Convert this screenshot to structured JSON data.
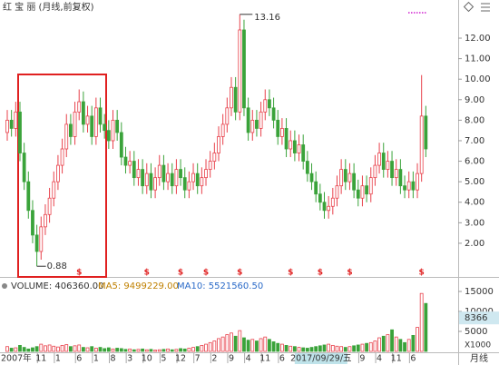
{
  "chart_data": {
    "type": "candlestick",
    "title": "红 宝 丽 (月线,前复权)",
    "period": "月线",
    "up_color": "#e8414b",
    "down_color": "#3aa33a",
    "categories": [
      "2007年",
      null,
      null,
      null,
      null,
      null,
      null,
      null,
      "11",
      null,
      null,
      null,
      "1",
      null,
      null,
      null,
      null,
      "6",
      null,
      null,
      null,
      "1",
      null,
      null,
      null,
      "8",
      null,
      null,
      null,
      "3",
      null,
      null,
      null,
      "10",
      null,
      null,
      null,
      "5",
      null,
      null,
      null,
      "12",
      null,
      null,
      null,
      "7",
      null,
      null,
      null,
      "2",
      null,
      null,
      null,
      "9",
      null,
      null,
      null,
      "4",
      null,
      null,
      null,
      "11",
      null,
      null,
      null,
      "6",
      null,
      null,
      null,
      null,
      null,
      null,
      null,
      null,
      "2017/09/29/五",
      null,
      null,
      null,
      null,
      null,
      null,
      null,
      null,
      null,
      "9",
      null,
      null,
      null,
      "4",
      null,
      null,
      null,
      "11",
      null,
      null,
      null,
      "6",
      null,
      null,
      null
    ],
    "open": [
      7.4,
      8.0,
      7.6,
      8.4,
      6.4,
      5.0,
      3.6,
      2.4,
      1.6,
      2.8,
      3.4,
      4.2,
      5.0,
      5.8,
      6.6,
      7.8,
      7.2,
      8.4,
      8.9,
      7.8,
      8.2,
      7.2,
      8.6,
      7.8,
      7.5,
      7.0,
      8.0,
      7.4,
      6.2,
      5.8,
      6.0,
      5.2,
      5.6,
      4.8,
      5.4,
      4.6,
      5.2,
      5.8,
      5.0,
      5.4,
      4.8,
      5.6,
      5.2,
      4.6,
      5.0,
      5.4,
      4.8,
      5.2,
      5.6,
      6.0,
      6.4,
      7.2,
      7.8,
      8.6,
      9.6,
      8.4,
      12.4,
      8.6,
      7.4,
      8.0,
      7.6,
      8.4,
      9.0,
      8.6,
      8.0,
      7.2,
      7.6,
      6.6,
      7.0,
      6.4,
      6.8,
      6.0,
      5.4,
      5.0,
      4.4,
      4.0,
      3.6,
      3.8,
      4.2,
      4.8,
      5.6,
      5.0,
      5.4,
      4.6,
      4.2,
      4.8,
      4.4,
      5.2,
      5.8,
      6.4,
      5.6,
      6.0,
      5.2,
      5.6,
      4.8,
      4.6,
      5.0,
      4.6,
      5.4,
      8.2
    ],
    "high": [
      8.5,
      8.5,
      8.9,
      8.9,
      6.9,
      5.5,
      4.1,
      2.9,
      3.3,
      3.9,
      4.7,
      5.5,
      6.3,
      7.1,
      8.3,
      8.3,
      8.9,
      9.5,
      9.4,
      8.7,
      8.7,
      9.1,
      9.1,
      8.3,
      8.0,
      8.5,
      8.5,
      7.9,
      6.7,
      6.5,
      6.5,
      6.1,
      6.1,
      5.9,
      5.9,
      5.7,
      6.3,
      6.3,
      5.9,
      5.9,
      6.1,
      6.1,
      5.7,
      5.5,
      5.9,
      5.9,
      5.7,
      6.1,
      6.5,
      6.9,
      7.7,
      8.3,
      9.1,
      10.1,
      10.1,
      13.16,
      12.9,
      9.1,
      8.5,
      8.5,
      8.9,
      9.5,
      9.5,
      9.1,
      8.5,
      8.1,
      8.1,
      7.5,
      7.5,
      7.3,
      7.3,
      6.5,
      5.9,
      5.5,
      4.9,
      4.5,
      4.3,
      4.7,
      5.3,
      6.1,
      6.1,
      5.9,
      5.9,
      5.1,
      5.3,
      5.3,
      5.7,
      6.3,
      6.9,
      6.9,
      6.5,
      6.5,
      6.1,
      6.1,
      5.3,
      5.5,
      5.5,
      5.9,
      10.2,
      8.7
    ],
    "low": [
      7.0,
      7.2,
      7.2,
      6.0,
      4.6,
      3.2,
      2.0,
      0.88,
      1.2,
      2.4,
      3.0,
      3.8,
      4.6,
      5.4,
      6.2,
      6.8,
      6.8,
      8.0,
      7.4,
      7.4,
      6.8,
      6.8,
      7.4,
      7.1,
      6.6,
      6.6,
      7.0,
      5.8,
      5.4,
      5.4,
      4.8,
      4.8,
      4.4,
      4.4,
      4.2,
      4.2,
      4.8,
      4.6,
      4.6,
      4.4,
      4.4,
      4.8,
      4.2,
      4.2,
      4.6,
      4.4,
      4.4,
      4.8,
      5.2,
      5.6,
      6.0,
      6.8,
      7.4,
      8.2,
      8.0,
      8.0,
      8.2,
      7.0,
      7.0,
      7.2,
      7.2,
      8.0,
      8.2,
      7.6,
      6.8,
      6.8,
      6.2,
      6.2,
      6.0,
      6.0,
      5.6,
      5.0,
      4.6,
      4.0,
      3.6,
      3.2,
      3.2,
      3.4,
      3.8,
      4.4,
      4.6,
      4.6,
      4.2,
      3.8,
      3.8,
      4.0,
      4.0,
      4.8,
      5.4,
      5.2,
      5.2,
      4.8,
      4.8,
      4.4,
      4.2,
      4.2,
      4.2,
      4.2,
      5.0,
      6.2
    ],
    "close": [
      8.0,
      7.6,
      8.4,
      6.4,
      5.0,
      3.6,
      2.4,
      1.6,
      2.8,
      3.4,
      4.2,
      5.0,
      5.8,
      6.6,
      7.8,
      7.2,
      8.4,
      8.9,
      7.8,
      8.2,
      7.2,
      8.6,
      7.8,
      7.5,
      7.0,
      8.0,
      7.4,
      6.2,
      5.8,
      6.0,
      5.2,
      5.6,
      4.8,
      5.4,
      4.6,
      5.2,
      5.8,
      5.0,
      5.4,
      4.8,
      5.6,
      5.2,
      4.6,
      5.0,
      5.4,
      4.8,
      5.2,
      5.6,
      6.0,
      6.4,
      7.2,
      7.8,
      8.6,
      9.6,
      8.4,
      12.4,
      8.6,
      7.4,
      8.0,
      7.6,
      8.4,
      9.0,
      8.6,
      8.0,
      7.2,
      7.6,
      6.6,
      7.0,
      6.4,
      6.8,
      6.0,
      5.4,
      5.0,
      4.4,
      4.0,
      3.6,
      3.8,
      4.2,
      4.8,
      5.6,
      5.0,
      5.4,
      4.6,
      4.2,
      4.8,
      4.4,
      5.2,
      5.8,
      6.4,
      5.6,
      6.0,
      5.2,
      5.6,
      4.8,
      4.6,
      5.0,
      4.6,
      5.4,
      8.2,
      6.6
    ],
    "dividend_markers": [
      null,
      null,
      null,
      null,
      null,
      null,
      null,
      null,
      null,
      null,
      null,
      null,
      null,
      null,
      null,
      null,
      null,
      "$",
      null,
      null,
      null,
      null,
      null,
      null,
      null,
      null,
      null,
      null,
      null,
      null,
      null,
      null,
      null,
      "$",
      null,
      null,
      null,
      null,
      null,
      null,
      null,
      "$",
      null,
      null,
      null,
      null,
      null,
      "$",
      null,
      null,
      null,
      null,
      null,
      null,
      null,
      "$",
      null,
      null,
      null,
      null,
      null,
      null,
      null,
      null,
      null,
      null,
      null,
      "$",
      null,
      null,
      null,
      null,
      null,
      null,
      "$",
      null,
      null,
      null,
      null,
      null,
      null,
      "$",
      null,
      null,
      null,
      null,
      null,
      null,
      null,
      null,
      null,
      null,
      null,
      null,
      null,
      null,
      null,
      null,
      "$",
      null
    ],
    "ylim": [
      0.58,
      13.86
    ],
    "yticks": [
      {
        "value": 2,
        "label": "2.00"
      },
      {
        "value": 3,
        "label": "3.00"
      },
      {
        "value": 4,
        "label": "4.00"
      },
      {
        "value": 5,
        "label": "5.00"
      },
      {
        "value": 6,
        "label": "6.00"
      },
      {
        "value": 7,
        "label": "7.00"
      },
      {
        "value": 8,
        "label": "8.00"
      },
      {
        "value": 9,
        "label": "9.00"
      },
      {
        "value": 10,
        "label": "10.00"
      },
      {
        "value": 11,
        "label": "11.00"
      },
      {
        "value": 12,
        "label": "12.00"
      }
    ],
    "volume_header": "VOLUME: 406360.00",
    "ma5_header": "MA5: 9499229.00",
    "ma10_header": "MA10: 5521560.50",
    "volume": [
      1200,
      800,
      900,
      1500,
      1000,
      600,
      900,
      1200,
      1800,
      1400,
      1600,
      1300,
      1100,
      1500,
      1700,
      1200,
      1400,
      1600,
      1000,
      900,
      1200,
      800,
      1000,
      700,
      900,
      600,
      800,
      700,
      500,
      600,
      400,
      500,
      600,
      400,
      500,
      300,
      400,
      500,
      600,
      400,
      500,
      700,
      600,
      800,
      1000,
      1200,
      1500,
      1800,
      2200,
      2600,
      3200,
      3600,
      4200,
      4600,
      3800,
      5200,
      3400,
      2800,
      3000,
      2600,
      3200,
      3600,
      3000,
      2400,
      2000,
      1800,
      1500,
      1300,
      1200,
      1000,
      900,
      800,
      1000,
      1200,
      1400,
      1600,
      1800,
      1500,
      1300,
      1200,
      1000,
      1200,
      1400,
      1600,
      1800,
      2000,
      2200,
      2600,
      3400,
      3800,
      4200,
      5400,
      3600,
      3000,
      2200,
      3000,
      4000,
      6000,
      14500,
      12000
    ],
    "volume_ylim": [
      0,
      17500
    ],
    "volume_yticks": [
      5000,
      10000,
      15000
    ],
    "volume_cursor": 8366,
    "volume_unit": "X1000"
  }
}
